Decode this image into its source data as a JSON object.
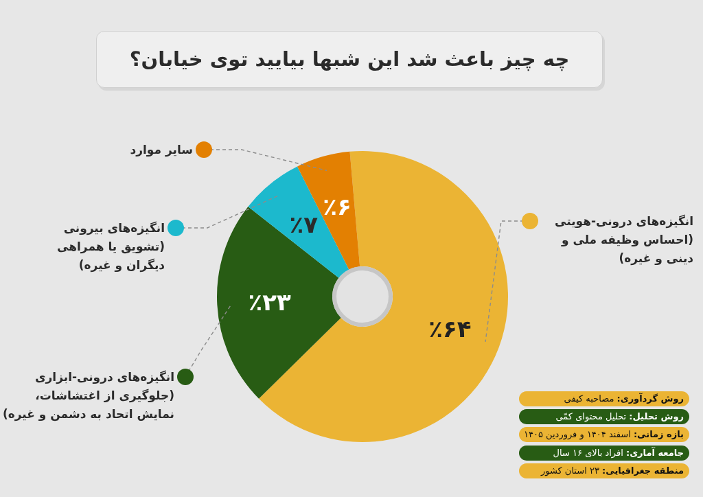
{
  "chart_data": {
    "type": "donut",
    "title": "چه چیز باعث شد این شبها بیایید توی خیابان؟",
    "categories": [
      "انگیزه‌های درونی-هویتی (احساس وظیفه ملی و دینی و غیره)",
      "انگیزه‌های درونی-ابزاری (جلوگیری از اغتشاشات، نمایش اتحاد به دشمن و غیره)",
      "انگیزه‌های بیرونی (تشویق یا همراهی دیگران و غیره)",
      "سایر موارد"
    ],
    "values": [
      64,
      23,
      7,
      6
    ],
    "colors": [
      "#ebb434",
      "#285c14",
      "#1cb9cd",
      "#e38002"
    ],
    "value_labels": [
      "٪۶۴",
      "٪۲۳",
      "٪۷",
      "٪۶"
    ],
    "annotations": [
      "**روش گردآوری:** مصاحبه کیفی",
      "**روش تحلیل:** تحلیل محتوای کمّی",
      "**بازه زمانی:** اسفند ۱۴۰۴ و فروردین ۱۴۰۵",
      "**جامعه آماری:** افراد بالای ۱۶ سال",
      "**منطقه جغرافیایی:** ۲۳ استان کشور"
    ]
  }
}
